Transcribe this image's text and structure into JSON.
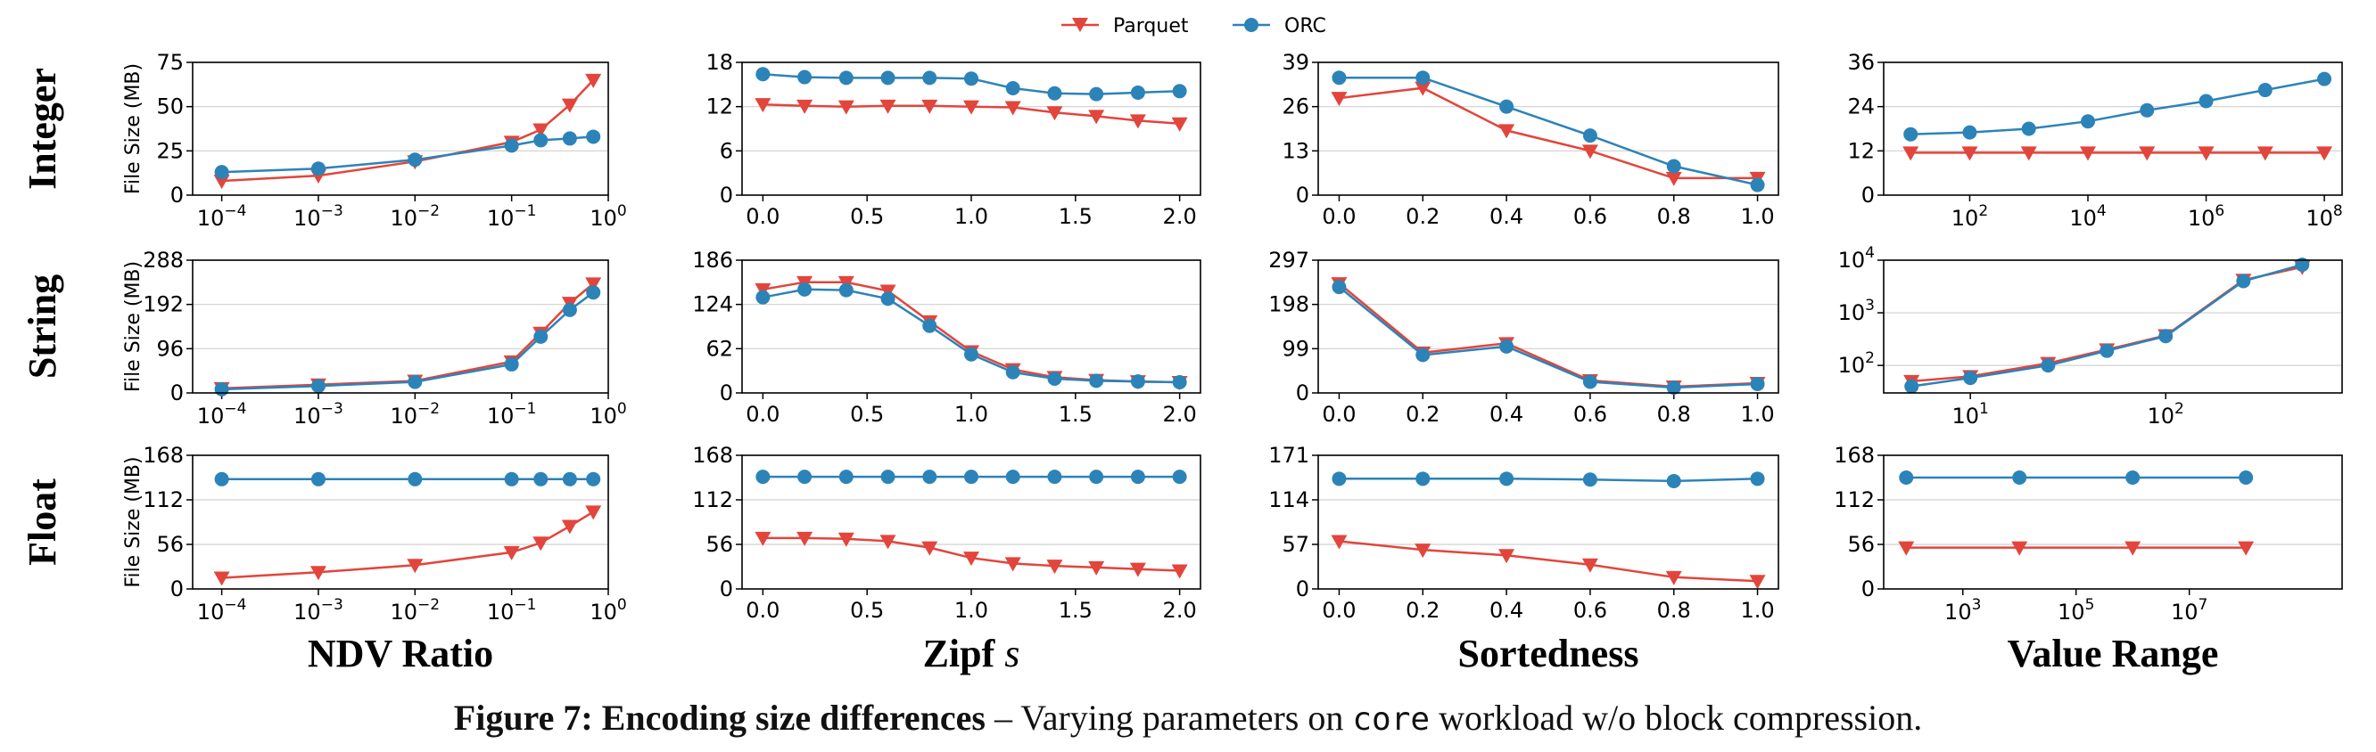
{
  "colors": {
    "parquet": "#e2453c",
    "orc": "#2c83b8",
    "axis": "#000000",
    "grid": "#d0d0d0"
  },
  "legend": {
    "items": [
      "Parquet",
      "ORC"
    ]
  },
  "row_labels": [
    "Integer",
    "String",
    "Float"
  ],
  "col_labels": [
    {
      "text": "NDV Ratio",
      "italic": ""
    },
    {
      "text": "Zipf ",
      "italic": "s"
    },
    {
      "text": "Sortedness",
      "italic": ""
    },
    {
      "text": "Value Range",
      "italic": ""
    }
  ],
  "ylabel": "File Size (MB)",
  "caption": {
    "bold": "Figure 7: Encoding size differences",
    "pre": " – Varying parameters on ",
    "mono": "core",
    "post": " workload w/o block compression."
  },
  "chart_data": [
    {
      "type": "line",
      "row": 0,
      "col": 0,
      "xscale": "log",
      "xlim": [
        5e-05,
        1.0
      ],
      "xticks": [
        -4,
        -3,
        -2,
        -1,
        0
      ],
      "xtick_labels_style": "pow10",
      "ylim": [
        0,
        75
      ],
      "yticks": [
        "0",
        "25",
        "50",
        "75"
      ],
      "x": [
        0.0001,
        0.001,
        0.01,
        0.1,
        0.2,
        0.4,
        0.7
      ],
      "series": [
        {
          "name": "Parquet",
          "values": [
            8,
            11,
            19,
            30,
            37,
            51,
            65
          ]
        },
        {
          "name": "ORC",
          "values": [
            13,
            15,
            20,
            28,
            31,
            32,
            33
          ]
        }
      ]
    },
    {
      "type": "line",
      "row": 0,
      "col": 1,
      "xscale": "linear",
      "xlim": [
        -0.1,
        2.1
      ],
      "xticks": [
        "0.0",
        "0.5",
        "1.0",
        "1.5",
        "2.0"
      ],
      "ylim": [
        0,
        18
      ],
      "yticks": [
        "0",
        "6",
        "12",
        "18"
      ],
      "x": [
        0,
        0.2,
        0.4,
        0.6,
        0.8,
        1.0,
        1.2,
        1.4,
        1.6,
        1.8,
        2.0
      ],
      "series": [
        {
          "name": "Parquet",
          "values": [
            12.3,
            12.1,
            12.0,
            12.1,
            12.1,
            12.0,
            11.9,
            11.2,
            10.7,
            10.1,
            9.7
          ]
        },
        {
          "name": "ORC",
          "values": [
            16.4,
            16.0,
            15.9,
            15.9,
            15.9,
            15.8,
            14.5,
            13.8,
            13.7,
            13.9,
            14.1
          ]
        }
      ]
    },
    {
      "type": "line",
      "row": 0,
      "col": 2,
      "xscale": "linear",
      "xlim": [
        -0.05,
        1.05
      ],
      "xticks": [
        "0.0",
        "0.2",
        "0.4",
        "0.6",
        "0.8",
        "1.0"
      ],
      "ylim": [
        0,
        39
      ],
      "yticks": [
        "0",
        "13",
        "26",
        "39"
      ],
      "x": [
        0,
        0.2,
        0.4,
        0.6,
        0.8,
        1.0
      ],
      "series": [
        {
          "name": "Parquet",
          "values": [
            28.5,
            31.5,
            19.0,
            13.0,
            5.0,
            5.0
          ]
        },
        {
          "name": "ORC",
          "values": [
            34.5,
            34.5,
            26.0,
            17.5,
            8.5,
            3.0
          ]
        }
      ]
    },
    {
      "type": "line",
      "row": 0,
      "col": 3,
      "xscale": "log",
      "xlim": [
        3.5,
        200000000
      ],
      "xticks": [
        2,
        4,
        6,
        8
      ],
      "xtick_labels_style": "pow10",
      "ylim": [
        0,
        36
      ],
      "yticks": [
        "0",
        "12",
        "24",
        "36"
      ],
      "x": [
        10,
        100,
        1000,
        10000,
        100000,
        1000000,
        10000000,
        100000000
      ],
      "series": [
        {
          "name": "Parquet",
          "values": [
            11.5,
            11.5,
            11.5,
            11.5,
            11.5,
            11.5,
            11.5,
            11.5
          ]
        },
        {
          "name": "ORC",
          "values": [
            16.5,
            17.0,
            18.0,
            20.0,
            23.0,
            25.5,
            28.5,
            31.5
          ]
        }
      ]
    },
    {
      "type": "line",
      "row": 1,
      "col": 0,
      "xscale": "log",
      "xlim": [
        5e-05,
        1.0
      ],
      "xticks": [
        -4,
        -3,
        -2,
        -1,
        0
      ],
      "xtick_labels_style": "pow10",
      "ylim": [
        0,
        288
      ],
      "yticks": [
        "0",
        "96",
        "192",
        "288"
      ],
      "x": [
        0.0001,
        0.001,
        0.01,
        0.1,
        0.2,
        0.4,
        0.7
      ],
      "series": [
        {
          "name": "Parquet",
          "values": [
            10,
            18,
            26,
            68,
            130,
            195,
            237
          ]
        },
        {
          "name": "ORC",
          "values": [
            8,
            15,
            24,
            62,
            122,
            180,
            218
          ]
        }
      ]
    },
    {
      "type": "line",
      "row": 1,
      "col": 1,
      "xscale": "linear",
      "xlim": [
        -0.1,
        2.1
      ],
      "xticks": [
        "0.0",
        "0.5",
        "1.0",
        "1.5",
        "2.0"
      ],
      "ylim": [
        0,
        186
      ],
      "yticks": [
        "0",
        "62",
        "124",
        "186"
      ],
      "x": [
        0,
        0.2,
        0.4,
        0.6,
        0.8,
        1.0,
        1.2,
        1.4,
        1.6,
        1.8,
        2.0
      ],
      "series": [
        {
          "name": "Parquet",
          "values": [
            145,
            155,
            155,
            143,
            100,
            58,
            33,
            22,
            18,
            16,
            15
          ]
        },
        {
          "name": "ORC",
          "values": [
            134,
            145,
            144,
            132,
            94,
            54,
            29,
            20,
            17,
            16,
            15
          ]
        }
      ]
    },
    {
      "type": "line",
      "row": 1,
      "col": 2,
      "xscale": "linear",
      "xlim": [
        -0.05,
        1.05
      ],
      "xticks": [
        "0.0",
        "0.2",
        "0.4",
        "0.6",
        "0.8",
        "1.0"
      ],
      "ylim": [
        0,
        297
      ],
      "yticks": [
        "0",
        "99",
        "198",
        "297"
      ],
      "x": [
        0,
        0.2,
        0.4,
        0.6,
        0.8,
        1.0
      ],
      "series": [
        {
          "name": "Parquet",
          "values": [
            245,
            90,
            111,
            28,
            14,
            22
          ]
        },
        {
          "name": "ORC",
          "values": [
            237,
            85,
            104,
            25,
            12,
            20
          ]
        }
      ]
    },
    {
      "type": "line",
      "row": 1,
      "col": 3,
      "xscale": "log",
      "yscale": "log",
      "xlim": [
        3.6,
        800
      ],
      "xticks": [
        1,
        2
      ],
      "xtick_labels_style": "pow10",
      "ylim": [
        30,
        10000
      ],
      "yticks": [
        2,
        3,
        4
      ],
      "ytick_labels_style": "pow10",
      "x": [
        5,
        10,
        25,
        50,
        100,
        250,
        500
      ],
      "series": [
        {
          "name": "Parquet",
          "values": [
            50,
            62,
            110,
            200,
            370,
            4200,
            7400
          ]
        },
        {
          "name": "ORC",
          "values": [
            40,
            58,
            100,
            190,
            360,
            4000,
            8200
          ]
        }
      ]
    },
    {
      "type": "line",
      "row": 2,
      "col": 0,
      "xscale": "log",
      "xlim": [
        5e-05,
        1.0
      ],
      "xticks": [
        -4,
        -3,
        -2,
        -1,
        0
      ],
      "xtick_labels_style": "pow10",
      "ylim": [
        0,
        168
      ],
      "yticks": [
        "0",
        "56",
        "112",
        "168"
      ],
      "x": [
        0.0001,
        0.001,
        0.01,
        0.1,
        0.2,
        0.4,
        0.7
      ],
      "series": [
        {
          "name": "Parquet",
          "values": [
            14,
            21,
            30,
            46,
            58,
            79,
            97
          ]
        },
        {
          "name": "ORC",
          "values": [
            138,
            138,
            138,
            138,
            138,
            138,
            138
          ]
        }
      ]
    },
    {
      "type": "line",
      "row": 2,
      "col": 1,
      "xscale": "linear",
      "xlim": [
        -0.1,
        2.1
      ],
      "xticks": [
        "0.0",
        "0.5",
        "1.0",
        "1.5",
        "2.0"
      ],
      "ylim": [
        0,
        168
      ],
      "yticks": [
        "0",
        "56",
        "112",
        "168"
      ],
      "x": [
        0,
        0.2,
        0.4,
        0.6,
        0.8,
        1.0,
        1.2,
        1.4,
        1.6,
        1.8,
        2.0
      ],
      "series": [
        {
          "name": "Parquet",
          "values": [
            64,
            64,
            63,
            60,
            52,
            39,
            32,
            29,
            27,
            25,
            23
          ]
        },
        {
          "name": "ORC",
          "values": [
            141,
            141,
            141,
            141,
            141,
            141,
            141,
            141,
            141,
            141,
            141
          ]
        }
      ]
    },
    {
      "type": "line",
      "row": 2,
      "col": 2,
      "xscale": "linear",
      "xlim": [
        -0.05,
        1.05
      ],
      "xticks": [
        "0.0",
        "0.2",
        "0.4",
        "0.6",
        "0.8",
        "1.0"
      ],
      "ylim": [
        0,
        171
      ],
      "yticks": [
        "0",
        "57",
        "114",
        "171"
      ],
      "x": [
        0,
        0.2,
        0.4,
        0.6,
        0.8,
        1.0
      ],
      "series": [
        {
          "name": "Parquet",
          "values": [
            61,
            50,
            43,
            31,
            15,
            10
          ]
        },
        {
          "name": "ORC",
          "values": [
            141,
            141,
            141,
            140,
            138,
            141
          ]
        }
      ]
    },
    {
      "type": "line",
      "row": 2,
      "col": 3,
      "xscale": "log",
      "xlim": [
        40,
        5000000000
      ],
      "xticks": [
        3,
        5,
        7
      ],
      "xtick_labels_style": "pow10",
      "ylim": [
        0,
        168
      ],
      "yticks": [
        "0",
        "56",
        "112",
        "168"
      ],
      "x": [
        100,
        10000,
        1000000,
        100000000
      ],
      "series": [
        {
          "name": "Parquet",
          "values": [
            52,
            52,
            52,
            52
          ]
        },
        {
          "name": "ORC",
          "values": [
            140,
            140,
            140,
            140
          ]
        }
      ]
    }
  ]
}
